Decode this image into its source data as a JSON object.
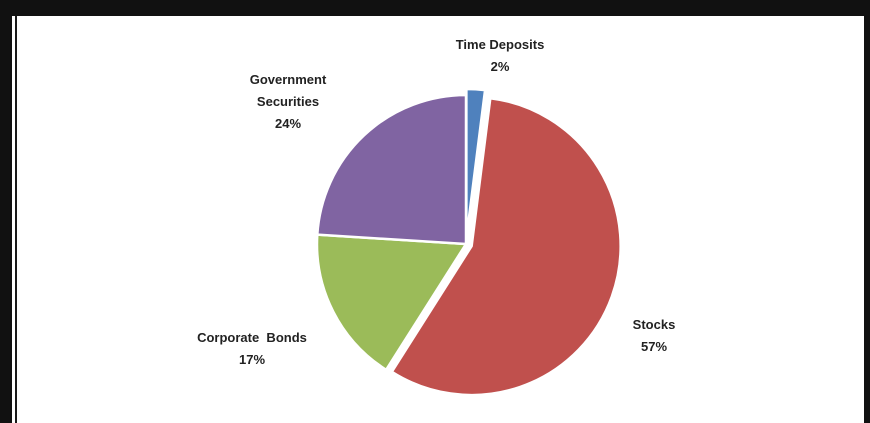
{
  "chart_data": {
    "type": "pie",
    "title": "",
    "slices": [
      {
        "label_lines": [
          "Time Deposits"
        ],
        "pct_label": "2%",
        "value": 2,
        "color": "#4f81bd"
      },
      {
        "label_lines": [
          "Stocks"
        ],
        "pct_label": "57%",
        "value": 57,
        "color": "#c0504d"
      },
      {
        "label_lines": [
          "Corporate  Bonds"
        ],
        "pct_label": "17%",
        "value": 17,
        "color": "#9bbb59"
      },
      {
        "label_lines": [
          "Government",
          "Securities"
        ],
        "pct_label": "24%",
        "value": 24,
        "color": "#8064a2"
      }
    ],
    "exploded": [
      "Time Deposits",
      "Stocks"
    ],
    "legend": "none",
    "grid": false
  }
}
